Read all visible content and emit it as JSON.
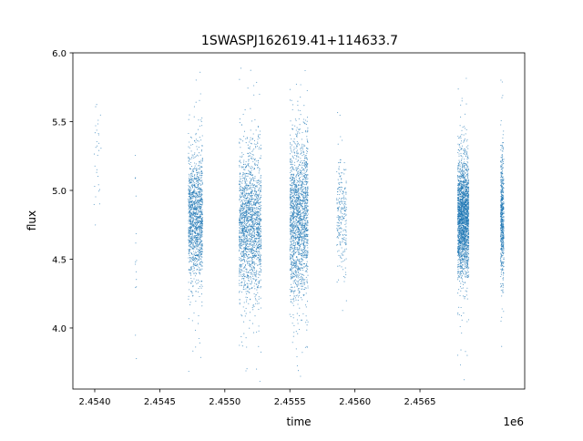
{
  "chart_data": {
    "type": "scatter",
    "title": "1SWASPJ162619.41+114633.7",
    "xlabel": "time",
    "ylabel": "flux",
    "x_offset_label": "1e6",
    "xlim": [
      2453832,
      2457305
    ],
    "ylim": [
      3.556,
      6.0
    ],
    "x_ticks": [
      2454000,
      2454500,
      2455000,
      2455500,
      2456000,
      2456500
    ],
    "x_tick_labels": [
      "2.4540",
      "2.4545",
      "2.4550",
      "2.4555",
      "2.4560",
      "2.4565"
    ],
    "y_ticks": [
      4.0,
      4.5,
      5.0,
      5.5,
      6.0
    ],
    "y_tick_labels": [
      "4.0",
      "4.5",
      "5.0",
      "5.5",
      "6.0"
    ],
    "grid": false,
    "marker_color": "#1f77b4",
    "observing_seasons": [
      {
        "t_start": 2453990,
        "t_end": 2454050,
        "flux_median": 5.3,
        "flux_sigma": 0.25,
        "n": 30
      },
      {
        "t_start": 2454310,
        "t_end": 2454325,
        "flux_median": 4.6,
        "flux_sigma": 0.45,
        "n": 16
      },
      {
        "t_start": 2454720,
        "t_end": 2454830,
        "flux_median": 4.8,
        "flux_sigma": 0.22,
        "n": 1400
      },
      {
        "t_start": 2455110,
        "t_end": 2455280,
        "flux_median": 4.75,
        "flux_sigma": 0.25,
        "n": 1800
      },
      {
        "t_start": 2455500,
        "t_end": 2455640,
        "flux_median": 4.8,
        "flux_sigma": 0.28,
        "n": 1800
      },
      {
        "t_start": 2455860,
        "t_end": 2455935,
        "flux_median": 4.85,
        "flux_sigma": 0.2,
        "n": 250
      },
      {
        "t_start": 2456790,
        "t_end": 2456875,
        "flux_median": 4.8,
        "flux_sigma": 0.2,
        "n": 2200
      },
      {
        "t_start": 2457120,
        "t_end": 2457145,
        "flux_median": 4.8,
        "flux_sigma": 0.22,
        "n": 600
      }
    ]
  }
}
